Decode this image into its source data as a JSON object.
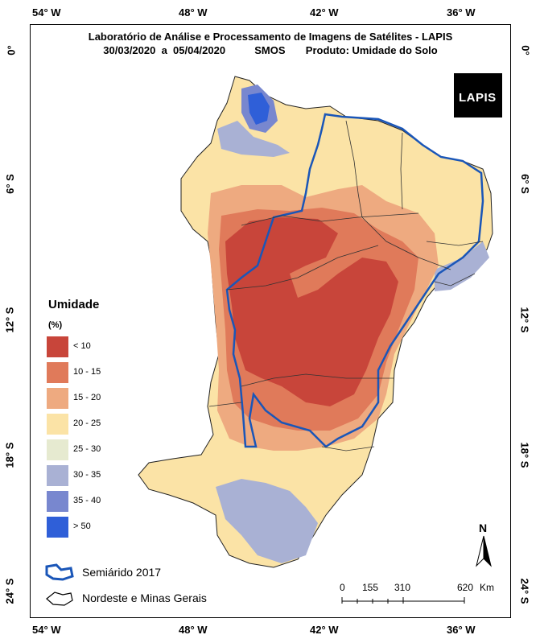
{
  "title": {
    "line1": "Laboratório de Análise e Processamento de Imagens de Satélites - LAPIS",
    "line2": "30/03/2020  a  05/04/2020          SMOS       Produto: Umidade do Solo"
  },
  "longitude_labels_top": [
    "54° W",
    "48° W",
    "42° W",
    "36° W"
  ],
  "longitude_labels_bottom": [
    "54° W",
    "48° W",
    "42° W",
    "36° W"
  ],
  "latitude_labels_left": [
    "0°",
    "6° S",
    "12° S",
    "18° S",
    "24° S"
  ],
  "latitude_labels_right": [
    "0°",
    "6° S",
    "12° S",
    "18° S",
    "24° S"
  ],
  "legend": {
    "title": "Umidade",
    "unit": "(%)",
    "items": [
      {
        "label": "< 10",
        "color": "#c8453a"
      },
      {
        "label": "10 - 15",
        "color": "#e07a5a"
      },
      {
        "label": "15 - 20",
        "color": "#eeaa80"
      },
      {
        "label": "20 - 25",
        "color": "#fbe3a6"
      },
      {
        "label": "25 - 30",
        "color": "#e6ead0"
      },
      {
        "label": "30 - 35",
        "color": "#a9b1d4"
      },
      {
        "label": "35 - 40",
        "color": "#7887cf"
      },
      {
        "label": "> 50",
        "color": "#2f5fd8"
      }
    ]
  },
  "boundary_legend": {
    "semiarido": "Semiárido 2017",
    "nordeste": "Nordeste e Minas Gerais"
  },
  "scale_bar": {
    "labels": [
      "0",
      "155",
      "310",
      "620"
    ],
    "unit": "Km"
  },
  "north_label": "N",
  "logo_text": "LAPIS",
  "colors": {
    "semiarido_outline": "#1a56b8",
    "state_borders": "#333333"
  }
}
